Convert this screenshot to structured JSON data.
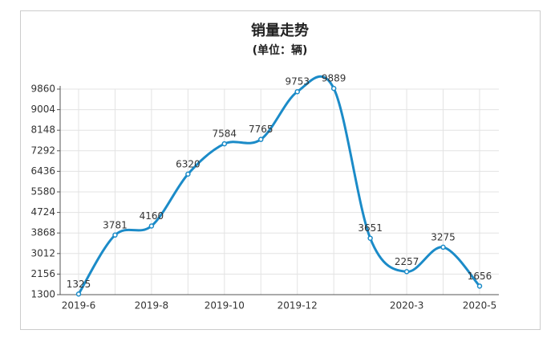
{
  "chart_data": {
    "type": "line",
    "title": "销量走势",
    "subtitle": "(单位：辆)",
    "categories": [
      "2019-6",
      null,
      "2019-8",
      null,
      "2019-10",
      null,
      "2019-12",
      null,
      null,
      "2020-3",
      null,
      "2020-5"
    ],
    "series": [
      {
        "name": "销量",
        "color": "#1b8bc8",
        "values": [
          1325,
          3781,
          4160,
          6320,
          7584,
          7765,
          9753,
          9889,
          3651,
          2257,
          3275,
          1656
        ]
      }
    ],
    "ylim": [
      1300,
      9860
    ],
    "yticks": [
      1300,
      2156,
      3012,
      3868,
      4724,
      5580,
      6436,
      7292,
      8148,
      9004,
      9860
    ],
    "grid": true,
    "smooth": true
  }
}
